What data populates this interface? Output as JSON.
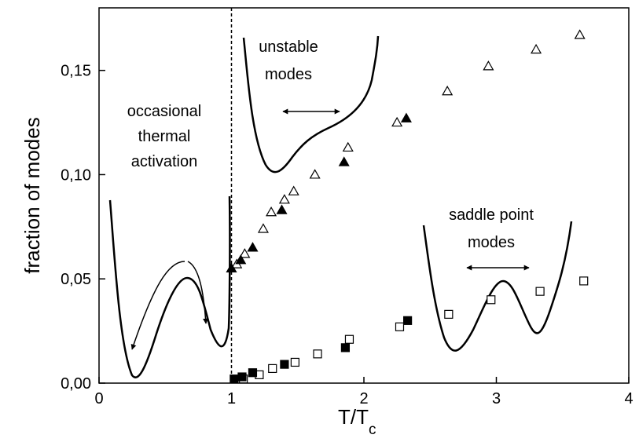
{
  "chart_data": {
    "type": "scatter",
    "xlabel": "T/T",
    "xlabel_sub": "c",
    "ylabel": "fraction of modes",
    "xlim": [
      0,
      4
    ],
    "ylim": [
      0,
      0.18
    ],
    "x_ticks": [
      {
        "value": 0,
        "label": "0"
      },
      {
        "value": 1,
        "label": "1"
      },
      {
        "value": 2,
        "label": "2"
      },
      {
        "value": 3,
        "label": "3"
      },
      {
        "value": 4,
        "label": "4"
      }
    ],
    "y_ticks": [
      {
        "value": 0,
        "label": "0,00"
      },
      {
        "value": 0.05,
        "label": "0,05"
      },
      {
        "value": 0.1,
        "label": "0,10"
      },
      {
        "value": 0.15,
        "label": "0,15"
      }
    ],
    "vline_x": 1,
    "series": [
      {
        "marker": "triangle-open",
        "points": [
          [
            1.04,
            0.057
          ],
          [
            1.1,
            0.062
          ],
          [
            1.24,
            0.074
          ],
          [
            1.3,
            0.082
          ],
          [
            1.4,
            0.088
          ],
          [
            1.47,
            0.092
          ],
          [
            1.63,
            0.1
          ],
          [
            1.88,
            0.113
          ],
          [
            2.25,
            0.125
          ],
          [
            2.63,
            0.14
          ],
          [
            2.94,
            0.152
          ],
          [
            3.3,
            0.16
          ],
          [
            3.63,
            0.167
          ]
        ]
      },
      {
        "marker": "triangle-filled",
        "points": [
          [
            1.0,
            0.055
          ],
          [
            1.07,
            0.059
          ],
          [
            1.16,
            0.065
          ],
          [
            1.38,
            0.083
          ],
          [
            1.85,
            0.106
          ],
          [
            2.32,
            0.127
          ]
        ]
      },
      {
        "marker": "square-open",
        "points": [
          [
            1.09,
            0.002
          ],
          [
            1.21,
            0.004
          ],
          [
            1.31,
            0.007
          ],
          [
            1.48,
            0.01
          ],
          [
            1.65,
            0.014
          ],
          [
            1.89,
            0.021
          ],
          [
            2.27,
            0.027
          ],
          [
            2.64,
            0.033
          ],
          [
            2.96,
            0.04
          ],
          [
            3.33,
            0.044
          ],
          [
            3.66,
            0.049
          ]
        ]
      },
      {
        "marker": "square-filled",
        "points": [
          [
            1.02,
            0.002
          ],
          [
            1.08,
            0.003
          ],
          [
            1.16,
            0.005
          ],
          [
            1.4,
            0.009
          ],
          [
            1.86,
            0.017
          ],
          [
            2.33,
            0.03
          ]
        ]
      }
    ],
    "annotations": {
      "left": [
        "occasional",
        "thermal",
        "activation"
      ],
      "top": [
        "unstable",
        "modes"
      ],
      "right": [
        "saddle point",
        "modes"
      ]
    }
  }
}
